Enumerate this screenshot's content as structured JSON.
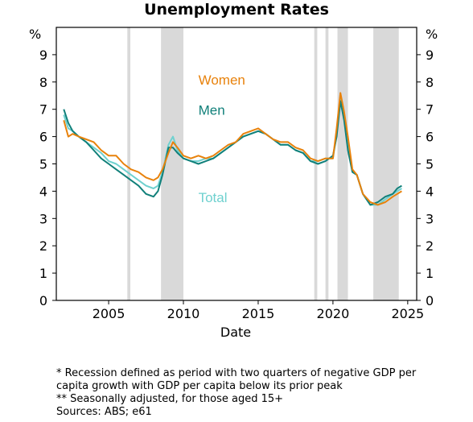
{
  "chart_data": {
    "type": "line",
    "title": "Unemployment Rates",
    "xlabel": "Date",
    "ylabel_left": "%",
    "ylabel_right": "%",
    "xlim": [
      2001.5,
      2025.6
    ],
    "ylim": [
      0,
      10
    ],
    "x_ticks": [
      2005,
      2010,
      2015,
      2020,
      2025
    ],
    "y_ticks": [
      0,
      1,
      2,
      3,
      4,
      5,
      6,
      7,
      8,
      9
    ],
    "grid": false,
    "recessions": [
      [
        2006.25,
        2006.45
      ],
      [
        2008.5,
        2010.0
      ],
      [
        2018.75,
        2018.95
      ],
      [
        2019.5,
        2019.7
      ],
      [
        2020.3,
        2021.0
      ],
      [
        2022.7,
        2024.4
      ]
    ],
    "recession_color": "#d9d9d9",
    "series": [
      {
        "name": "Women",
        "color": "#e8820c",
        "label_pos": [
          2011.0,
          7.9
        ],
        "x": [
          2002.0,
          2002.3,
          2002.6,
          2003.0,
          2003.5,
          2004.0,
          2004.5,
          2005.0,
          2005.5,
          2006.0,
          2006.5,
          2007.0,
          2007.5,
          2008.0,
          2008.3,
          2008.6,
          2009.0,
          2009.3,
          2009.6,
          2010.0,
          2010.5,
          2011.0,
          2011.5,
          2012.0,
          2012.5,
          2013.0,
          2013.5,
          2014.0,
          2014.5,
          2015.0,
          2015.5,
          2016.0,
          2016.5,
          2017.0,
          2017.5,
          2018.0,
          2018.5,
          2019.0,
          2019.5,
          2020.0,
          2020.25,
          2020.5,
          2020.75,
          2021.0,
          2021.3,
          2021.6,
          2022.0,
          2022.5,
          2023.0,
          2023.5,
          2024.0,
          2024.3,
          2024.6
        ],
        "values": [
          6.6,
          6.0,
          6.1,
          6.0,
          5.9,
          5.8,
          5.5,
          5.3,
          5.3,
          5.0,
          4.8,
          4.7,
          4.5,
          4.4,
          4.5,
          4.8,
          5.4,
          5.8,
          5.6,
          5.3,
          5.2,
          5.3,
          5.2,
          5.3,
          5.5,
          5.7,
          5.8,
          6.1,
          6.2,
          6.3,
          6.1,
          5.9,
          5.8,
          5.8,
          5.6,
          5.5,
          5.2,
          5.1,
          5.2,
          5.2,
          6.3,
          7.6,
          6.9,
          6.0,
          4.8,
          4.6,
          3.9,
          3.6,
          3.5,
          3.6,
          3.8,
          3.9,
          4.0
        ]
      },
      {
        "name": "Men",
        "color": "#11807a",
        "label_pos": [
          2011.0,
          6.8
        ],
        "x": [
          2002.0,
          2002.3,
          2002.6,
          2003.0,
          2003.5,
          2004.0,
          2004.5,
          2005.0,
          2005.5,
          2006.0,
          2006.5,
          2007.0,
          2007.5,
          2008.0,
          2008.3,
          2008.6,
          2009.0,
          2009.3,
          2009.6,
          2010.0,
          2010.5,
          2011.0,
          2011.5,
          2012.0,
          2012.5,
          2013.0,
          2013.5,
          2014.0,
          2014.5,
          2015.0,
          2015.5,
          2016.0,
          2016.5,
          2017.0,
          2017.5,
          2018.0,
          2018.5,
          2019.0,
          2019.5,
          2020.0,
          2020.25,
          2020.5,
          2020.75,
          2021.0,
          2021.3,
          2021.6,
          2022.0,
          2022.5,
          2023.0,
          2023.5,
          2024.0,
          2024.3,
          2024.6
        ],
        "values": [
          7.0,
          6.5,
          6.2,
          6.0,
          5.8,
          5.5,
          5.2,
          5.0,
          4.8,
          4.6,
          4.4,
          4.2,
          3.9,
          3.8,
          4.0,
          4.6,
          5.6,
          5.6,
          5.4,
          5.2,
          5.1,
          5.0,
          5.1,
          5.2,
          5.4,
          5.6,
          5.8,
          6.0,
          6.1,
          6.2,
          6.1,
          5.9,
          5.7,
          5.7,
          5.5,
          5.4,
          5.1,
          5.0,
          5.1,
          5.3,
          6.0,
          7.3,
          6.6,
          5.5,
          4.7,
          4.6,
          3.9,
          3.5,
          3.6,
          3.8,
          3.9,
          4.1,
          4.2
        ]
      },
      {
        "name": "Total",
        "color": "#6fd1cf",
        "label_pos": [
          2011.0,
          3.6
        ],
        "x": [
          2002.0,
          2002.3,
          2002.6,
          2003.0,
          2003.5,
          2004.0,
          2004.5,
          2005.0,
          2005.5,
          2006.0,
          2006.5,
          2007.0,
          2007.5,
          2008.0,
          2008.3,
          2008.6,
          2009.0,
          2009.3,
          2009.6,
          2010.0,
          2010.5,
          2011.0,
          2011.5,
          2012.0,
          2012.5,
          2013.0,
          2013.5,
          2014.0,
          2014.5,
          2015.0,
          2015.5,
          2016.0,
          2016.5,
          2017.0,
          2017.5,
          2018.0,
          2018.5,
          2019.0,
          2019.5,
          2020.0,
          2020.25,
          2020.5,
          2020.75,
          2021.0,
          2021.3,
          2021.6,
          2022.0,
          2022.5,
          2023.0,
          2023.5,
          2024.0,
          2024.3,
          2024.6
        ],
        "values": [
          6.8,
          6.3,
          6.2,
          6.0,
          5.8,
          5.6,
          5.4,
          5.1,
          5.0,
          4.8,
          4.6,
          4.4,
          4.2,
          4.1,
          4.2,
          4.7,
          5.7,
          6.0,
          5.5,
          5.2,
          5.1,
          5.1,
          5.2,
          5.2,
          5.4,
          5.6,
          5.8,
          6.0,
          6.1,
          6.2,
          6.1,
          5.9,
          5.7,
          5.7,
          5.5,
          5.4,
          5.1,
          5.1,
          5.2,
          5.2,
          6.1,
          7.4,
          6.8,
          5.7,
          4.7,
          4.6,
          3.9,
          3.5,
          3.5,
          3.7,
          3.9,
          4.0,
          4.1
        ]
      }
    ]
  },
  "notes": {
    "line1": "* Recession defined as period with two quarters of negative GDP per",
    "line2": "capita growth with GDP per capita below its prior peak",
    "line3": "** Seasonally adjusted, for those aged 15+",
    "line4": "Sources: ABS; e61"
  }
}
